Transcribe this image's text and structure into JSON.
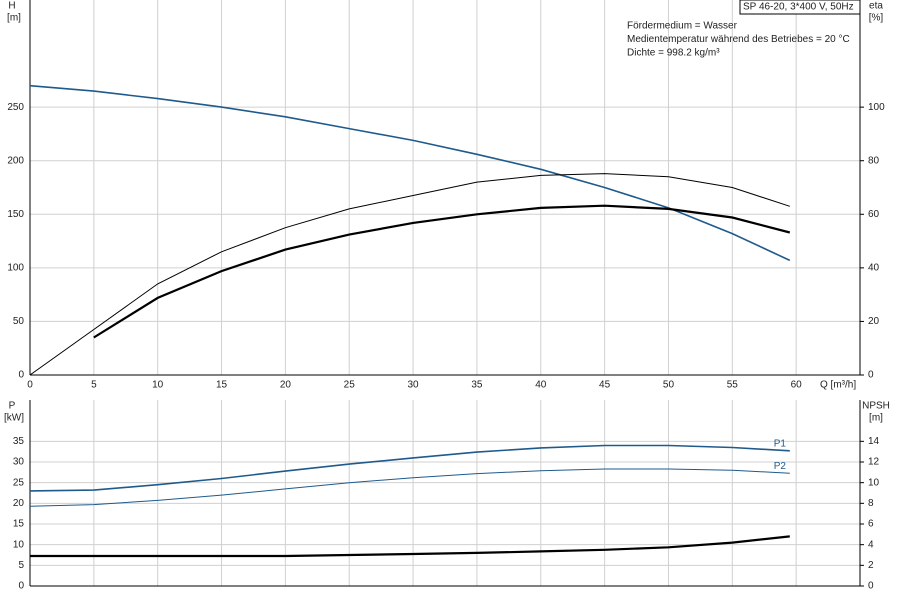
{
  "chart_data": [
    {
      "type": "line",
      "ylabel": "H",
      "yunit": "[m]",
      "y2label": "eta",
      "y2unit": "[%]",
      "xlabel": "Q [m³/h]",
      "model": "SP 46-20, 3*400 V, 50Hz",
      "notes": [
        "Fördermedium = Wasser",
        "Medientemperatur während des Betriebes = 20 °C",
        "Dichte = 998.2 kg/m³"
      ],
      "xlim": [
        0,
        65
      ],
      "xticks": [
        0,
        5,
        10,
        15,
        20,
        25,
        30,
        35,
        40,
        45,
        50,
        55,
        60
      ],
      "ylim": [
        0,
        350
      ],
      "yticks": [
        0,
        50,
        100,
        150,
        200,
        250
      ],
      "y2lim": [
        0,
        140
      ],
      "y2ticks": [
        0,
        20,
        40,
        60,
        80,
        100
      ],
      "grid": true,
      "x": [
        0,
        5,
        10,
        15,
        20,
        25,
        30,
        35,
        40,
        45,
        50,
        55,
        59.5
      ],
      "series": [
        {
          "color": "#1f5a8c",
          "line_width": 1.6,
          "values": [
            270,
            265,
            258,
            250,
            241,
            230,
            219,
            206,
            192,
            175,
            156,
            132,
            107
          ]
        },
        {
          "color": "#000000",
          "line_width": 1,
          "axis": "y2",
          "values": [
            0,
            17,
            34,
            46,
            55,
            62,
            67,
            72,
            74.5,
            75.2,
            74,
            70,
            63
          ]
        },
        {
          "color": "#000000",
          "line_width": 2.2,
          "axis": "y2",
          "values": [
            null,
            14,
            28.8,
            38.8,
            46.8,
            52.4,
            56.8,
            60,
            62.4,
            63.2,
            62,
            58.8,
            53.2
          ]
        }
      ]
    },
    {
      "type": "line",
      "ylabel": "P",
      "yunit": "[kW]",
      "y2label": "NPSH",
      "y2unit": "[m]",
      "xlim": [
        0,
        65
      ],
      "xticks": [
        0,
        5,
        10,
        15,
        20,
        25,
        30,
        35,
        40,
        45,
        50,
        55,
        60
      ],
      "ylim": [
        0,
        45
      ],
      "yticks": [
        0,
        5,
        10,
        15,
        20,
        25,
        30,
        35
      ],
      "y2lim": [
        0,
        18
      ],
      "y2ticks": [
        0,
        2,
        4,
        6,
        8,
        10,
        12,
        14
      ],
      "grid": true,
      "x": [
        0,
        5,
        10,
        15,
        20,
        25,
        30,
        35,
        40,
        45,
        50,
        55,
        59.5
      ],
      "series": [
        {
          "name": "P1",
          "color": "#1f5a8c",
          "line_width": 1.6,
          "values": [
            23,
            23.2,
            24.5,
            26,
            27.8,
            29.5,
            31,
            32.4,
            33.4,
            34,
            34,
            33.5,
            32.7
          ]
        },
        {
          "name": "P2",
          "color": "#1f5a8c",
          "line_width": 1,
          "values": [
            19.3,
            19.7,
            20.7,
            22,
            23.5,
            25,
            26.2,
            27.2,
            27.9,
            28.3,
            28.3,
            28,
            27.3
          ]
        },
        {
          "color": "#000000",
          "line_width": 2.2,
          "axis": "y2",
          "values": [
            2.9,
            2.9,
            2.9,
            2.9,
            2.9,
            3,
            3.1,
            3.2,
            3.35,
            3.5,
            3.75,
            4.2,
            4.8
          ]
        }
      ]
    }
  ]
}
